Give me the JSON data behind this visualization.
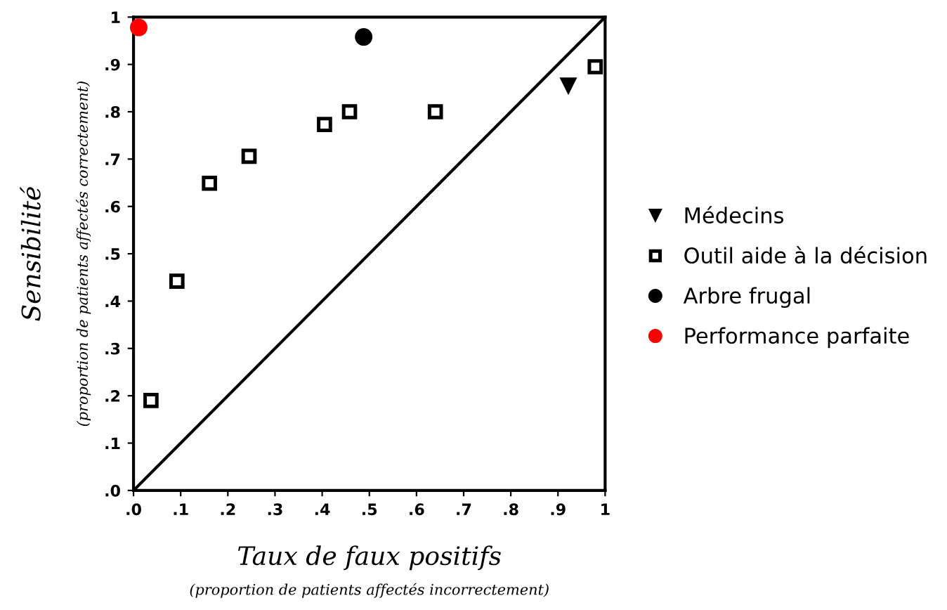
{
  "chart_data": {
    "type": "scatter",
    "xlabel": "Taux de faux positifs",
    "ylabel": "Sensibilité",
    "annotations": [
      "(proportion de patients affectés correctement)",
      "(proportion de patients affectés incorrectement)"
    ],
    "xlim": [
      0,
      1
    ],
    "ylim": [
      0,
      1
    ],
    "xticks": [
      {
        "value": 0,
        "label": ".0"
      },
      {
        "value": 0.1,
        "label": ".1"
      },
      {
        "value": 0.2,
        "label": ".2"
      },
      {
        "value": 0.3,
        "label": ".3"
      },
      {
        "value": 0.4,
        "label": ".4"
      },
      {
        "value": 0.5,
        "label": ".5"
      },
      {
        "value": 0.6,
        "label": ".6"
      },
      {
        "value": 0.7,
        "label": ".7"
      },
      {
        "value": 0.8,
        "label": ".8"
      },
      {
        "value": 0.9,
        "label": ".9"
      },
      1
    ],
    "yticks": [
      {
        "value": 0,
        "label": ".0"
      },
      {
        "value": 0.1,
        "label": ".1"
      },
      {
        "value": 0.2,
        "label": ".2"
      },
      {
        "value": 0.3,
        "label": ".3"
      },
      {
        "value": 0.4,
        "label": ".4"
      },
      {
        "value": 0.5,
        "label": ".5"
      },
      {
        "value": 0.6,
        "label": ".6"
      },
      {
        "value": 0.7,
        "label": ".7"
      },
      {
        "value": 0.8,
        "label": ".8"
      },
      {
        "value": 0.9,
        "label": ".9"
      },
      1
    ],
    "grid": false,
    "legend": "right",
    "series": [
      {
        "type": "line",
        "color": "#000000",
        "x": [
          0,
          1
        ],
        "values": [
          0,
          1
        ],
        "marker": "none",
        "line_style": "solid"
      },
      {
        "name": "Médecins",
        "color": "#000000",
        "marker": "triangle",
        "x": [
          0.922
        ],
        "values": [
          0.854
        ]
      },
      {
        "name": "Outil aide à la décision",
        "color": "#ffffff",
        "marker": "square",
        "x": [
          0.037,
          0.092,
          0.161,
          0.245,
          0.405,
          0.458,
          0.64,
          0.979
        ],
        "values": [
          0.19,
          0.442,
          0.649,
          0.706,
          0.773,
          0.8,
          0.8,
          0.895
        ]
      },
      {
        "name": "Arbre frugal",
        "color": "#000000",
        "marker": "circle",
        "x": [
          0.488
        ],
        "values": [
          0.958
        ]
      },
      {
        "name": "Performance parfaite",
        "color": "#ff0000",
        "marker": "circle",
        "x": [
          0.011
        ],
        "values": [
          0.978
        ]
      }
    ]
  }
}
